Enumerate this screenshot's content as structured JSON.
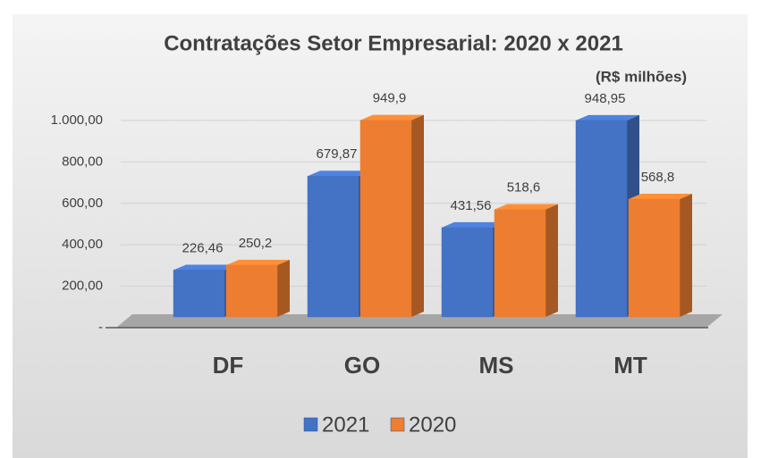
{
  "chart_data": {
    "type": "bar3d",
    "title": "Contratações Setor Empresarial: 2020 x 2021",
    "subtitle": "(R$ milhões)",
    "categories": [
      "DF",
      "GO",
      "MS",
      "MT"
    ],
    "series": [
      {
        "name": "2021",
        "color": "#4472c4",
        "values": [
          226.46,
          679.87,
          431.56,
          948.95
        ],
        "value_labels": [
          "226,46",
          "679,87",
          "431,56",
          "948,95"
        ]
      },
      {
        "name": "2020",
        "color": "#ed7d31",
        "values": [
          250.2,
          949.9,
          518.6,
          568.8
        ],
        "value_labels": [
          "250,2",
          "949,9",
          "518,6",
          "568,8"
        ]
      }
    ],
    "ylim": [
      0,
      1000
    ],
    "yticks": [
      {
        "value": 0,
        "label": "-"
      },
      {
        "value": 200,
        "label": "200,00"
      },
      {
        "value": 400,
        "label": "400,00"
      },
      {
        "value": 600,
        "label": "600,00"
      },
      {
        "value": 800,
        "label": "800,00"
      },
      {
        "value": 1000,
        "label": "1.000,00"
      }
    ],
    "grid": true,
    "legend": "bottom"
  }
}
